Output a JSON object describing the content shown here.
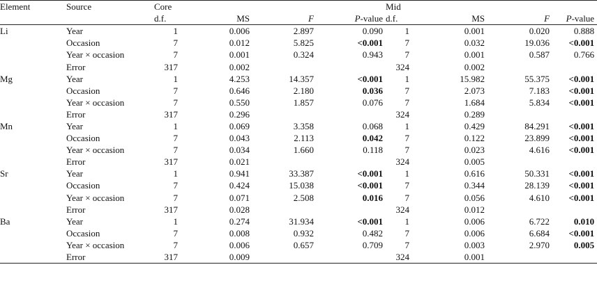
{
  "headers": {
    "element": "Element",
    "source": "Source",
    "core": "Core",
    "mid": "Mid",
    "df": "d.f.",
    "ms": "MS",
    "f": "F",
    "p_prefix": "P",
    "p_suffix": "-value"
  },
  "groups": [
    {
      "element": "Li",
      "rows": [
        {
          "source": "Year",
          "core": {
            "df": "1",
            "ms": "0.006",
            "f": "2.897",
            "p": "0.090",
            "p_bold": false
          },
          "mid": {
            "df": "1",
            "ms": "0.001",
            "f": "0.020",
            "p": "0.888",
            "p_bold": false
          }
        },
        {
          "source": "Occasion",
          "core": {
            "df": "7",
            "ms": "0.012",
            "f": "5.825",
            "p": "<0.001",
            "p_bold": true
          },
          "mid": {
            "df": "7",
            "ms": "0.032",
            "f": "19.036",
            "p": "<0.001",
            "p_bold": true
          }
        },
        {
          "source": "Year × occasion",
          "core": {
            "df": "7",
            "ms": "0.001",
            "f": "0.324",
            "p": "0.943",
            "p_bold": false
          },
          "mid": {
            "df": "7",
            "ms": "0.001",
            "f": "0.587",
            "p": "0.766",
            "p_bold": false
          }
        },
        {
          "source": "Error",
          "core": {
            "df": "317",
            "ms": "0.002",
            "f": "",
            "p": "",
            "p_bold": false
          },
          "mid": {
            "df": "324",
            "ms": "0.002",
            "f": "",
            "p": "",
            "p_bold": false
          }
        }
      ]
    },
    {
      "element": "Mg",
      "rows": [
        {
          "source": "Year",
          "core": {
            "df": "1",
            "ms": "4.253",
            "f": "14.357",
            "p": "<0.001",
            "p_bold": true
          },
          "mid": {
            "df": "1",
            "ms": "15.982",
            "f": "55.375",
            "p": "<0.001",
            "p_bold": true
          }
        },
        {
          "source": "Occasion",
          "core": {
            "df": "7",
            "ms": "0.646",
            "f": "2.180",
            "p": "0.036",
            "p_bold": true
          },
          "mid": {
            "df": "7",
            "ms": "2.073",
            "f": "7.183",
            "p": "<0.001",
            "p_bold": true
          }
        },
        {
          "source": "Year × occasion",
          "core": {
            "df": "7",
            "ms": "0.550",
            "f": "1.857",
            "p": "0.076",
            "p_bold": false
          },
          "mid": {
            "df": "7",
            "ms": "1.684",
            "f": "5.834",
            "p": "<0.001",
            "p_bold": true
          }
        },
        {
          "source": "Error",
          "core": {
            "df": "317",
            "ms": "0.296",
            "f": "",
            "p": "",
            "p_bold": false
          },
          "mid": {
            "df": "324",
            "ms": "0.289",
            "f": "",
            "p": "",
            "p_bold": false
          }
        }
      ]
    },
    {
      "element": "Mn",
      "rows": [
        {
          "source": "Year",
          "core": {
            "df": "1",
            "ms": "0.069",
            "f": "3.358",
            "p": "0.068",
            "p_bold": false
          },
          "mid": {
            "df": "1",
            "ms": "0.429",
            "f": "84.291",
            "p": "<0.001",
            "p_bold": true
          }
        },
        {
          "source": "Occasion",
          "core": {
            "df": "7",
            "ms": "0.043",
            "f": "2.113",
            "p": "0.042",
            "p_bold": true
          },
          "mid": {
            "df": "7",
            "ms": "0.122",
            "f": "23.899",
            "p": "<0.001",
            "p_bold": true
          }
        },
        {
          "source": "Year × occasion",
          "core": {
            "df": "7",
            "ms": "0.034",
            "f": "1.660",
            "p": "0.118",
            "p_bold": false
          },
          "mid": {
            "df": "7",
            "ms": "0.023",
            "f": "4.616",
            "p": "<0.001",
            "p_bold": true
          }
        },
        {
          "source": "Error",
          "core": {
            "df": "317",
            "ms": "0.021",
            "f": "",
            "p": "",
            "p_bold": false
          },
          "mid": {
            "df": "324",
            "ms": "0.005",
            "f": "",
            "p": "",
            "p_bold": false
          }
        }
      ]
    },
    {
      "element": "Sr",
      "rows": [
        {
          "source": "Year",
          "core": {
            "df": "1",
            "ms": "0.941",
            "f": "33.387",
            "p": "<0.001",
            "p_bold": true
          },
          "mid": {
            "df": "1",
            "ms": "0.616",
            "f": "50.331",
            "p": "<0.001",
            "p_bold": true
          }
        },
        {
          "source": "Occasion",
          "core": {
            "df": "7",
            "ms": "0.424",
            "f": "15.038",
            "p": "<0.001",
            "p_bold": true
          },
          "mid": {
            "df": "7",
            "ms": "0.344",
            "f": "28.139",
            "p": "<0.001",
            "p_bold": true
          }
        },
        {
          "source": "Year × occasion",
          "core": {
            "df": "7",
            "ms": "0.071",
            "f": "2.508",
            "p": "0.016",
            "p_bold": true
          },
          "mid": {
            "df": "7",
            "ms": "0.056",
            "f": "4.610",
            "p": "<0.001",
            "p_bold": true
          }
        },
        {
          "source": "Error",
          "core": {
            "df": "317",
            "ms": "0.028",
            "f": "",
            "p": "",
            "p_bold": false
          },
          "mid": {
            "df": "324",
            "ms": "0.012",
            "f": "",
            "p": "",
            "p_bold": false
          }
        }
      ]
    },
    {
      "element": "Ba",
      "rows": [
        {
          "source": "Year",
          "core": {
            "df": "1",
            "ms": "0.274",
            "f": "31.934",
            "p": "<0.001",
            "p_bold": true
          },
          "mid": {
            "df": "1",
            "ms": "0.006",
            "f": "6.722",
            "p": "0.010",
            "p_bold": true
          }
        },
        {
          "source": "Occasion",
          "core": {
            "df": "7",
            "ms": "0.008",
            "f": "0.932",
            "p": "0.482",
            "p_bold": false
          },
          "mid": {
            "df": "7",
            "ms": "0.006",
            "f": "6.684",
            "p": "<0.001",
            "p_bold": true
          }
        },
        {
          "source": "Year × occasion",
          "core": {
            "df": "7",
            "ms": "0.006",
            "f": "0.657",
            "p": "0.709",
            "p_bold": false
          },
          "mid": {
            "df": "7",
            "ms": "0.003",
            "f": "2.970",
            "p": "0.005",
            "p_bold": true
          }
        },
        {
          "source": "Error",
          "core": {
            "df": "317",
            "ms": "0.009",
            "f": "",
            "p": "",
            "p_bold": false
          },
          "mid": {
            "df": "324",
            "ms": "0.001",
            "f": "",
            "p": "",
            "p_bold": false
          }
        }
      ]
    }
  ]
}
